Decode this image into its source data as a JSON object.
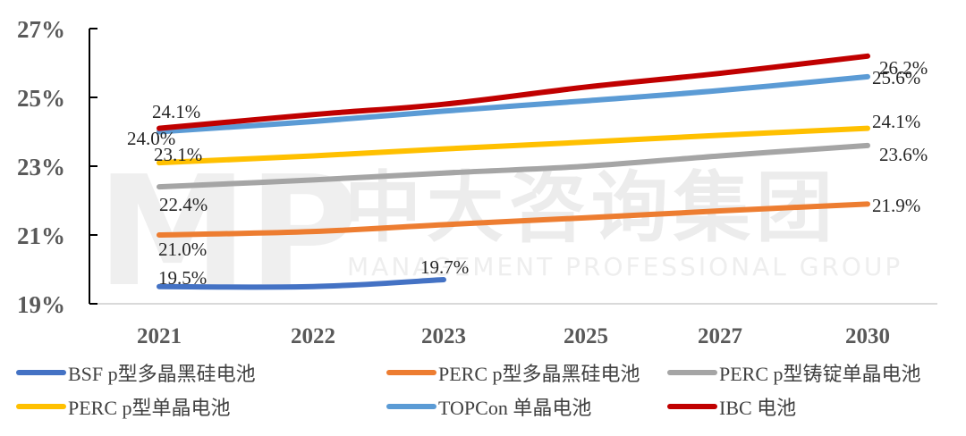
{
  "chart_data": {
    "type": "line",
    "title": "",
    "xlabel": "",
    "ylabel": "",
    "categories": [
      "2021",
      "2022",
      "2023",
      "2025",
      "2027",
      "2030"
    ],
    "ylim": [
      19,
      27
    ],
    "yticks": [
      "19%",
      "21%",
      "23%",
      "25%",
      "27%"
    ],
    "grid": false,
    "legend_position": "bottom",
    "series": [
      {
        "name": "BSF p型多晶黑硅电池",
        "color": "#4472C4",
        "values": [
          19.5,
          19.5,
          19.7,
          null,
          null,
          null
        ],
        "labels": {
          "2021": "19.5%",
          "2023": "19.7%"
        }
      },
      {
        "name": "PERC p型多晶黑硅电池",
        "color": "#ED7D31",
        "values": [
          21.0,
          21.1,
          21.3,
          21.5,
          21.7,
          21.9
        ],
        "labels": {
          "2021": "21.0%",
          "2030": "21.9%"
        }
      },
      {
        "name": "PERC p型铸锭单晶电池",
        "color": "#A5A5A5",
        "values": [
          22.4,
          22.6,
          22.8,
          23.0,
          23.3,
          23.6
        ],
        "labels": {
          "2021": "22.4%",
          "2030": "23.6%"
        }
      },
      {
        "name": "PERC p型单晶电池",
        "color": "#FFC000",
        "values": [
          23.1,
          23.3,
          23.5,
          23.7,
          23.9,
          24.1
        ],
        "labels": {
          "2021": "23.1%",
          "2030": "24.1%"
        }
      },
      {
        "name": "TOPCon 单晶电池",
        "color": "#5B9BD5",
        "values": [
          24.0,
          24.3,
          24.6,
          24.9,
          25.2,
          25.6
        ],
        "labels": {
          "2021": "24.0%",
          "2030": "25.6%"
        }
      },
      {
        "name": "IBC 电池",
        "color": "#C00000",
        "values": [
          24.1,
          24.5,
          24.8,
          25.3,
          25.7,
          26.2
        ],
        "labels": {
          "2021": "24.1%",
          "2030": "26.2%"
        }
      }
    ],
    "watermark": {
      "cn": "中大咨询集团",
      "en": "MANAGEMENT PROFESSIONAL GROUP",
      "logo": "MP"
    }
  },
  "legend": {
    "rows": [
      [
        {
          "label": "BSF p型多晶黑硅电池",
          "color": "#4472C4"
        },
        {
          "label": "PERC p型多晶黑硅电池",
          "color": "#ED7D31"
        },
        {
          "label": "PERC p型铸锭单晶电池",
          "color": "#A5A5A5"
        }
      ],
      [
        {
          "label": "PERC p型单晶电池",
          "color": "#FFC000"
        },
        {
          "label": "TOPCon 单晶电池",
          "color": "#5B9BD5"
        },
        {
          "label": "IBC 电池",
          "color": "#C00000"
        }
      ]
    ]
  }
}
